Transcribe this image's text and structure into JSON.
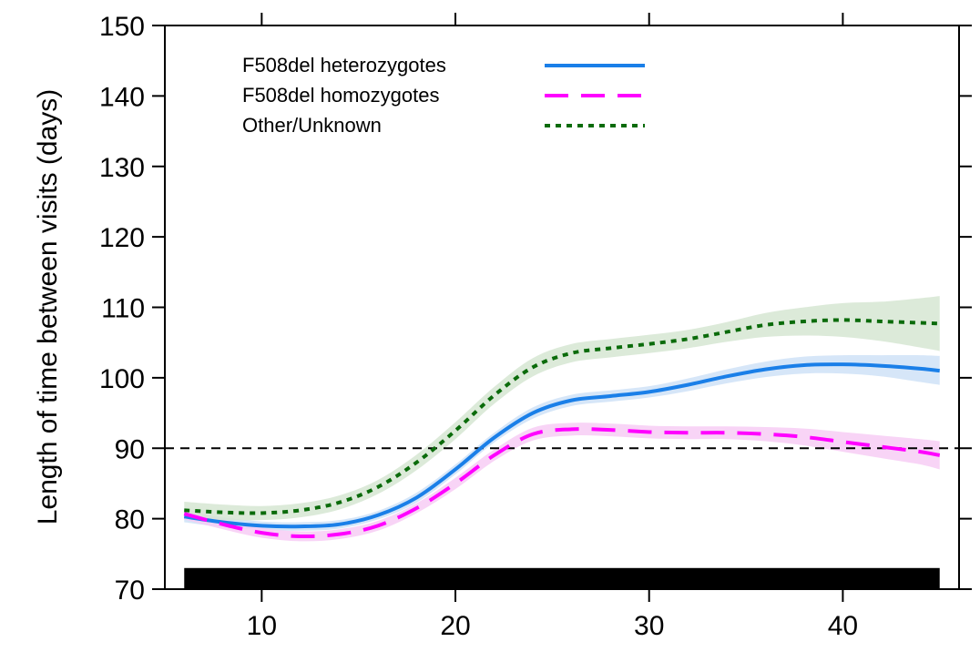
{
  "chart_data": {
    "type": "line",
    "title": "",
    "xlabel": "",
    "ylabel": "Length of time between visits (days)",
    "xlim": [
      5,
      46
    ],
    "ylim": [
      70,
      150
    ],
    "x_ticks": [
      10,
      20,
      30,
      40
    ],
    "y_ticks": [
      70,
      80,
      90,
      100,
      110,
      120,
      130,
      140,
      150
    ],
    "grid": false,
    "legend_position": "top-left",
    "reference_line": {
      "y": 90,
      "style": "dashed",
      "color": "#000000"
    },
    "bottom_bar": {
      "x": [
        6,
        45
      ],
      "y": [
        70,
        73
      ],
      "color": "#000000"
    },
    "series": [
      {
        "name": "F508del heterozygotes",
        "color": "#1a7fe8",
        "band_color": "#cfe2f7",
        "dash": "solid",
        "x": [
          6,
          8,
          10,
          12,
          14,
          16,
          18,
          20,
          22,
          24,
          26,
          28,
          30,
          32,
          34,
          36,
          38,
          40,
          42,
          44,
          45
        ],
        "y": [
          80.3,
          79.5,
          79.0,
          78.9,
          79.2,
          80.5,
          83.0,
          87.0,
          91.5,
          95.0,
          96.8,
          97.4,
          98.0,
          99.0,
          100.2,
          101.2,
          101.8,
          101.9,
          101.7,
          101.3,
          101.0
        ],
        "lower": [
          79.5,
          78.8,
          78.4,
          78.3,
          78.6,
          79.9,
          82.3,
          86.3,
          90.8,
          94.2,
          96.0,
          96.6,
          97.2,
          98.1,
          99.2,
          100.1,
          100.6,
          100.6,
          100.2,
          99.4,
          99.0
        ],
        "upper": [
          81.1,
          80.2,
          79.6,
          79.5,
          79.8,
          81.1,
          83.7,
          87.7,
          92.2,
          95.8,
          97.6,
          98.2,
          98.8,
          99.9,
          101.2,
          102.3,
          103.0,
          103.2,
          103.2,
          103.2,
          103.1
        ]
      },
      {
        "name": "F508del homozygotes",
        "color": "#ff00ff",
        "band_color": "#f7cdf5",
        "dash": "dashed",
        "x": [
          6,
          8,
          10,
          12,
          14,
          16,
          18,
          20,
          22,
          24,
          26,
          28,
          30,
          32,
          34,
          36,
          38,
          40,
          42,
          44,
          45
        ],
        "y": [
          80.7,
          79.2,
          78.0,
          77.5,
          77.8,
          79.0,
          81.5,
          85.0,
          89.0,
          92.0,
          92.7,
          92.6,
          92.3,
          92.2,
          92.2,
          92.0,
          91.6,
          90.9,
          90.2,
          89.5,
          89.0
        ],
        "lower": [
          79.9,
          78.5,
          77.3,
          76.8,
          77.1,
          78.3,
          80.8,
          84.2,
          88.2,
          91.1,
          91.8,
          91.7,
          91.4,
          91.3,
          91.3,
          91.0,
          90.4,
          89.5,
          88.6,
          87.7,
          87.0
        ],
        "upper": [
          81.5,
          79.9,
          78.7,
          78.2,
          78.5,
          79.7,
          82.2,
          85.8,
          89.8,
          92.9,
          93.6,
          93.5,
          93.2,
          93.1,
          93.1,
          93.0,
          92.8,
          92.3,
          91.8,
          91.3,
          91.0
        ]
      },
      {
        "name": "Other/Unknown",
        "color": "#0b6b0b",
        "band_color": "#d6e6d2",
        "dash": "dotted",
        "x": [
          6,
          8,
          10,
          12,
          14,
          16,
          18,
          20,
          22,
          24,
          26,
          28,
          30,
          32,
          34,
          36,
          38,
          40,
          42,
          44,
          45
        ],
        "y": [
          81.2,
          80.9,
          80.8,
          81.2,
          82.3,
          84.5,
          88.0,
          92.5,
          97.5,
          101.5,
          103.5,
          104.2,
          104.8,
          105.5,
          106.5,
          107.5,
          108.0,
          108.2,
          108.0,
          107.8,
          107.7
        ],
        "lower": [
          80.0,
          79.8,
          79.8,
          80.2,
          81.3,
          83.5,
          86.9,
          91.3,
          96.3,
          100.2,
          102.2,
          102.9,
          103.5,
          104.2,
          105.1,
          105.8,
          106.0,
          105.8,
          105.2,
          104.3,
          103.8
        ],
        "upper": [
          82.4,
          82.0,
          81.8,
          82.2,
          83.3,
          85.5,
          89.1,
          93.7,
          98.7,
          102.8,
          104.8,
          105.5,
          106.1,
          106.8,
          107.9,
          109.2,
          110.0,
          110.6,
          110.8,
          111.3,
          111.6
        ]
      }
    ]
  }
}
